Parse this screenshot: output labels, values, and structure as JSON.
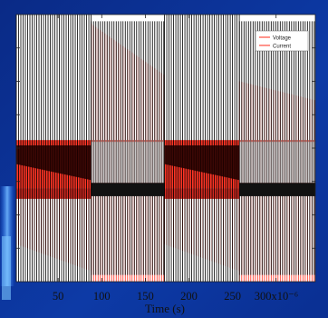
{
  "chart_data": {
    "type": "line",
    "title": "",
    "xlabel": "Time (s)",
    "ylabel": "",
    "x_tick_labels": [
      "50",
      "100",
      "150",
      "200",
      "250",
      "300x10⁻⁶"
    ],
    "x_tick_values": [
      50,
      100,
      150,
      200,
      250,
      300
    ],
    "x_unit_factor": "x10^-6",
    "xlim": [
      2,
      345
    ],
    "ylim": [
      -1,
      1
    ],
    "grid": false,
    "legend_position": "top-right",
    "series": [
      {
        "name": "Voltage",
        "color": "#000000",
        "segments": [
          {
            "t_start": 2,
            "t_end": 88,
            "state": "high",
            "amplitude": 1.0,
            "lower_edge_start": -0.12,
            "lower_edge_end": -0.24
          },
          {
            "t_start": 88,
            "t_end": 172,
            "state": "low",
            "amplitude": 0.95,
            "offset": -0.3
          },
          {
            "t_start": 172,
            "t_end": 258,
            "state": "high",
            "amplitude": 1.0,
            "lower_edge_start": -0.12,
            "lower_edge_end": -0.24
          },
          {
            "t_start": 258,
            "t_end": 345,
            "state": "low",
            "amplitude": 0.95,
            "offset": -0.3
          }
        ]
      },
      {
        "name": "Current",
        "color": "#ff2a1a",
        "segments": [
          {
            "t_start": 2,
            "t_end": 88,
            "state": "low",
            "upper": 0.06,
            "lower_start": -0.72,
            "lower_end": -0.92
          },
          {
            "t_start": 88,
            "t_end": 172,
            "state": "high",
            "upper_start": 0.93,
            "upper_end": 0.55,
            "lower": -1.0
          },
          {
            "t_start": 172,
            "t_end": 258,
            "state": "low",
            "upper": 0.06,
            "lower_start": -0.72,
            "lower_end": -0.92
          },
          {
            "t_start": 258,
            "t_end": 345,
            "state": "high",
            "upper_start": 0.5,
            "upper_end": 0.36,
            "lower": -1.0
          }
        ]
      }
    ]
  }
}
